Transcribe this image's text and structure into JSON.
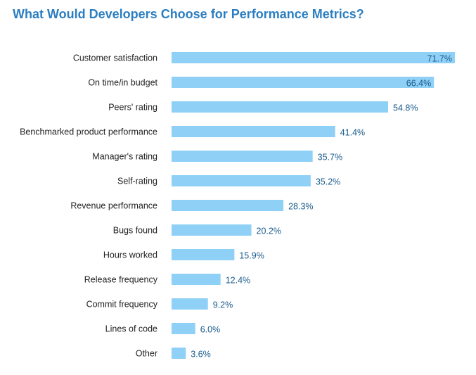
{
  "chart_data": {
    "type": "bar",
    "orientation": "horizontal",
    "title": "What Would Developers Choose for Performance Metrics?",
    "xlabel": "",
    "ylabel": "",
    "categories": [
      "Customer satisfaction",
      "On time/in budget",
      "Peers' rating",
      "Benchmarked product performance",
      "Manager's rating",
      "Self-rating",
      "Revenue performance",
      "Bugs found",
      "Hours worked",
      "Release frequency",
      "Commit frequency",
      "Lines of code",
      "Other"
    ],
    "values": [
      71.7,
      66.4,
      54.8,
      41.4,
      35.7,
      35.2,
      28.3,
      20.2,
      15.9,
      12.4,
      9.2,
      6.0,
      3.6
    ],
    "value_labels": [
      "71.7%",
      "66.4%",
      "54.8%",
      "41.4%",
      "35.7%",
      "35.2%",
      "28.3%",
      "20.2%",
      "15.9%",
      "12.4%",
      "9.2%",
      "6.0%",
      "3.6%"
    ],
    "xlim": [
      0,
      71.7
    ],
    "grid": false,
    "legend": "none"
  },
  "colors": {
    "title": "#2b7ec1",
    "bar": "#8fd0f7",
    "value_label": "#1a5b8c",
    "category_label": "#222222"
  }
}
